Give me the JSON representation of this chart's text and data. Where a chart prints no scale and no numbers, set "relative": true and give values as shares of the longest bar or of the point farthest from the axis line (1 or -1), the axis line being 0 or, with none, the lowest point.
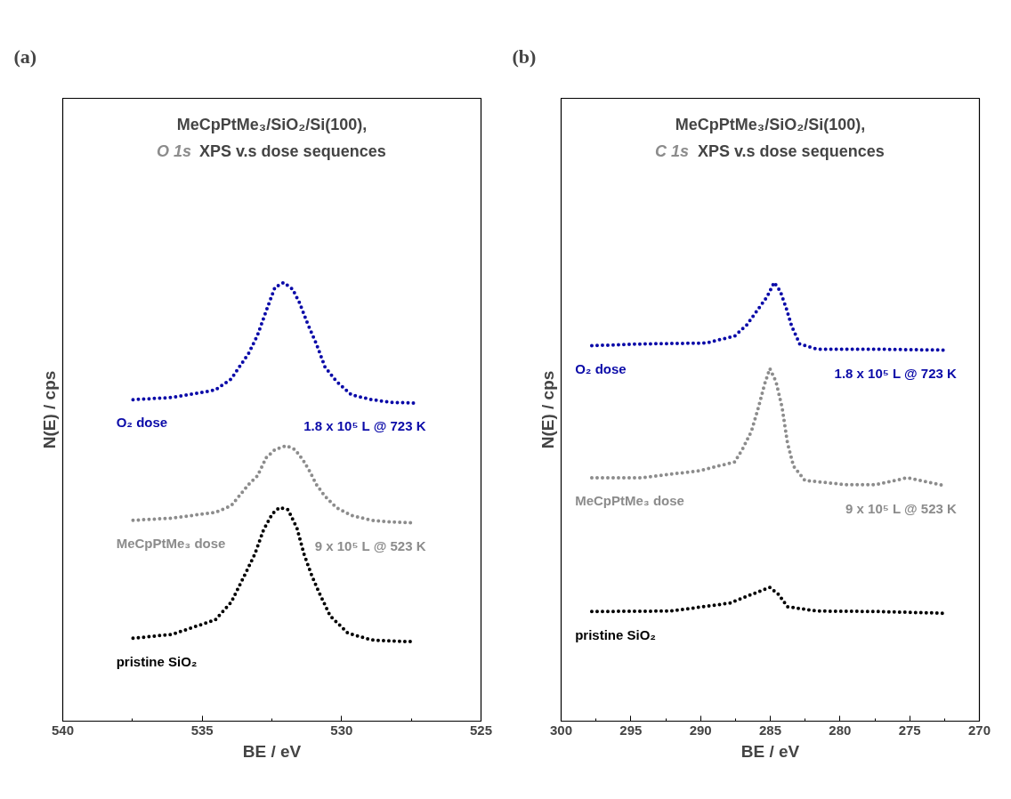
{
  "chart_data": [
    {
      "type": "line",
      "title": "MeCpPtMe₃/SiO₂/Si(100),",
      "subtitle": "O 1s XPS v.s dose sequences",
      "xlabel": "BE / eV",
      "ylabel": "N(E) / cps",
      "relative": true,
      "line_style": "dotted",
      "grid": false,
      "legend": false,
      "tick_labels": "x",
      "xlim": [
        540,
        525
      ],
      "xticks": [
        540,
        535,
        530,
        525
      ],
      "annotations": [
        "(a)",
        "1.8 x 10⁵ L @ 723 K",
        "9 x 10⁵ L @ 523 K"
      ],
      "series": [
        {
          "name": "O₂ dose",
          "color": "#0a0aa8",
          "x": [
            537.48,
            536.07,
            534.53,
            533.96,
            533.33,
            533.02,
            532.7,
            532.39,
            532.08,
            531.76,
            531.51,
            531.23,
            530.91,
            530.6,
            530.19,
            529.65,
            528.93,
            528.21,
            527.42
          ],
          "values": [
            0.733,
            0.738,
            0.755,
            0.78,
            0.839,
            0.879,
            0.936,
            0.989,
            1.0,
            0.985,
            0.954,
            0.908,
            0.861,
            0.808,
            0.775,
            0.744,
            0.733,
            0.727,
            0.725
          ]
        },
        {
          "name": "MeCpPtMe₃ dose",
          "color": "#8c8c8c",
          "x": [
            537.48,
            536.07,
            534.53,
            533.96,
            533.33,
            533.02,
            532.7,
            532.39,
            531.98,
            531.67,
            531.38,
            531.13,
            530.91,
            530.6,
            530.19,
            529.65,
            528.93,
            528.21,
            527.42
          ],
          "values": [
            0.458,
            0.463,
            0.476,
            0.491,
            0.54,
            0.559,
            0.601,
            0.619,
            0.628,
            0.619,
            0.595,
            0.568,
            0.54,
            0.513,
            0.487,
            0.469,
            0.458,
            0.454,
            0.452
          ]
        },
        {
          "name": "pristine SiO₂",
          "color": "#000000",
          "x": [
            537.48,
            536.07,
            534.53,
            533.96,
            533.43,
            533.11,
            532.8,
            532.48,
            532.23,
            531.92,
            531.6,
            531.35,
            531.07,
            530.82,
            530.41,
            529.78,
            528.93,
            528.21,
            527.42
          ],
          "values": [
            0.189,
            0.198,
            0.231,
            0.271,
            0.339,
            0.381,
            0.436,
            0.473,
            0.487,
            0.482,
            0.44,
            0.381,
            0.332,
            0.295,
            0.24,
            0.201,
            0.185,
            0.183,
            0.181
          ]
        }
      ]
    },
    {
      "type": "line",
      "title": "MeCpPtMe₃/SiO₂/Si(100),",
      "subtitle": "C 1s XPS v.s dose sequences",
      "xlabel": "BE / eV",
      "ylabel": "N(E) / cps",
      "relative": true,
      "line_style": "dotted",
      "grid": false,
      "legend": false,
      "tick_labels": "x",
      "xlim": [
        300,
        270
      ],
      "xticks": [
        300,
        295,
        290,
        285,
        280,
        275,
        270
      ],
      "annotations": [
        "(b)",
        "1.8 x 10⁵ L @ 723 K",
        "9 x 10⁵ L @ 523 K"
      ],
      "series": [
        {
          "name": "O₂ dose",
          "color": "#0a0aa8",
          "x": [
            297.8,
            294.21,
            289.62,
            287.55,
            286.67,
            285.85,
            285.22,
            284.72,
            284.28,
            283.84,
            283.46,
            282.89,
            281.64,
            277.48,
            272.52
          ],
          "values": [
            0.856,
            0.86,
            0.862,
            0.878,
            0.904,
            0.94,
            0.968,
            1.0,
            0.98,
            0.94,
            0.9,
            0.86,
            0.848,
            0.848,
            0.846
          ]
        },
        {
          "name": "MeCpPtMe₃ dose",
          "color": "#8c8c8c",
          "x": [
            297.8,
            294.21,
            290.06,
            287.55,
            286.98,
            286.35,
            285.85,
            285.41,
            285.03,
            284.59,
            284.15,
            283.77,
            283.33,
            282.52,
            279.56,
            277.48,
            275.16,
            272.52
          ],
          "values": [
            0.555,
            0.555,
            0.571,
            0.591,
            0.621,
            0.661,
            0.715,
            0.768,
            0.804,
            0.774,
            0.715,
            0.635,
            0.581,
            0.549,
            0.539,
            0.539,
            0.555,
            0.537
          ]
        },
        {
          "name": "pristine SiO₂",
          "color": "#000000",
          "x": [
            297.8,
            292.14,
            287.92,
            285.85,
            285.03,
            284.4,
            283.77,
            281.64,
            277.48,
            272.52
          ],
          "values": [
            0.25,
            0.251,
            0.269,
            0.295,
            0.305,
            0.289,
            0.261,
            0.251,
            0.25,
            0.246
          ]
        }
      ]
    }
  ]
}
